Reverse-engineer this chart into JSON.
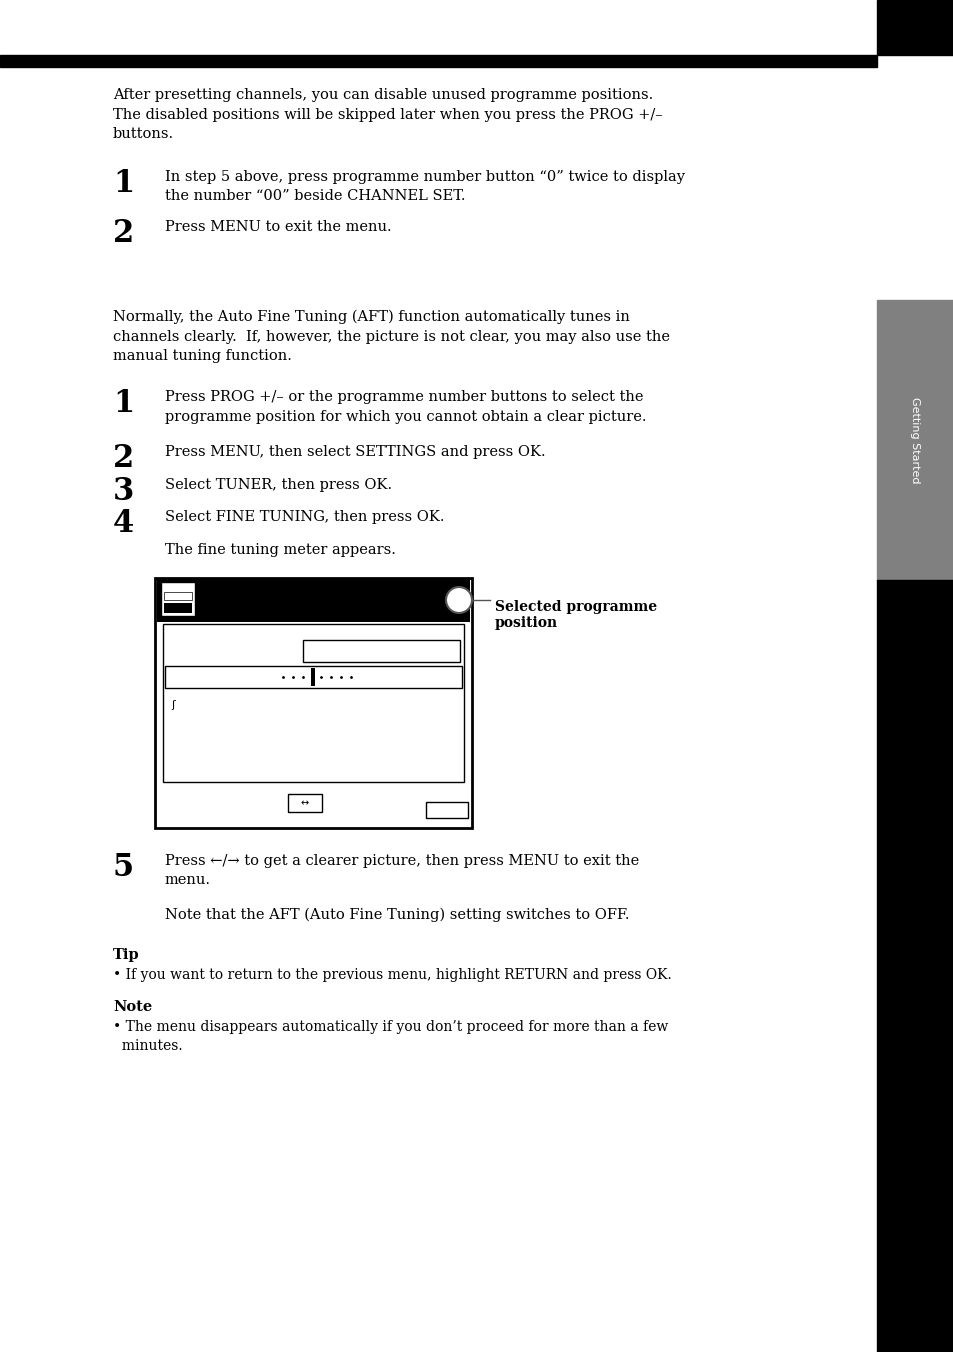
{
  "page_bg": "#ffffff",
  "sidebar_bg": "#000000",
  "sidebar_tab_bg": "#808080",
  "sidebar_text": "Getting Started",
  "section1": {
    "intro": "After presetting channels, you can disable unused programme positions.\nThe disabled positions will be skipped later when you press the PROG +/–\nbuttons.",
    "step1_num": "1",
    "step1_text": "In step 5 above, press programme number button “0” twice to display\nthe number “00” beside CHANNEL SET.",
    "step2_num": "2",
    "step2_text": "Press MENU to exit the menu."
  },
  "section2": {
    "intro": "Normally, the Auto Fine Tuning (AFT) function automatically tunes in\nchannels clearly.  If, however, the picture is not clear, you may also use the\nmanual tuning function.",
    "step1_num": "1",
    "step1_text": "Press PROG +/– or the programme number buttons to select the\nprogramme position for which you cannot obtain a clear picture.",
    "step2_num": "2",
    "step2_text": "Press MENU, then select SETTINGS and press OK.",
    "step3_num": "3",
    "step3_text": "Select TUNER, then press OK.",
    "step4_num": "4",
    "step4_text": "Select FINE TUNING, then press OK.",
    "fine_tune_note": "The fine tuning meter appears.",
    "step5_num": "5",
    "step5_text": "Press ←/→ to get a clearer picture, then press MENU to exit the\nmenu.",
    "aft_note": "Note that the AFT (Auto Fine Tuning) setting switches to OFF."
  },
  "tip_label": "Tip",
  "tip_text": "• If you want to return to the previous menu, highlight RETURN and press OK.",
  "note_label": "Note",
  "note_text": "• The menu disappears automatically if you don’t proceed for more than a few\n  minutes.",
  "diagram_label": "Selected programme\nposition"
}
